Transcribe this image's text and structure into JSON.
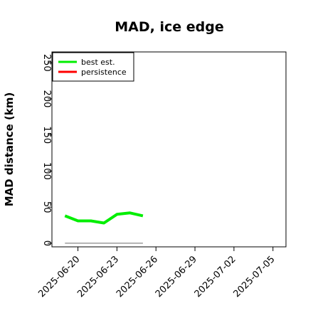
{
  "chart_data": {
    "type": "line",
    "title": "MAD, ice edge",
    "xlabel": "",
    "ylabel": "MAD distance (km)",
    "ylim": [
      -5,
      265
    ],
    "xlim": [
      "2025-06-18",
      "2025-07-06"
    ],
    "yticks": [
      0,
      50,
      100,
      150,
      200,
      250
    ],
    "xticks": [
      "2025-06-20",
      "2025-06-23",
      "2025-06-26",
      "2025-06-29",
      "2025-07-02",
      "2025-07-05"
    ],
    "legend": {
      "position": "top-left",
      "entries": [
        "best est.",
        "persistence"
      ]
    },
    "series": [
      {
        "name": "best est.",
        "color": "#00ee00",
        "x": [
          "2025-06-19",
          "2025-06-20",
          "2025-06-21",
          "2025-06-22",
          "2025-06-23",
          "2025-06-24",
          "2025-06-25"
        ],
        "values": [
          38,
          31,
          31,
          28,
          40,
          42,
          38
        ]
      },
      {
        "name": "persistence",
        "color": "#ff0000",
        "x": [],
        "values": []
      },
      {
        "name": "",
        "color": "#888888",
        "x": [
          "2025-06-19",
          "2025-06-25"
        ],
        "values": [
          0,
          0
        ]
      }
    ]
  }
}
